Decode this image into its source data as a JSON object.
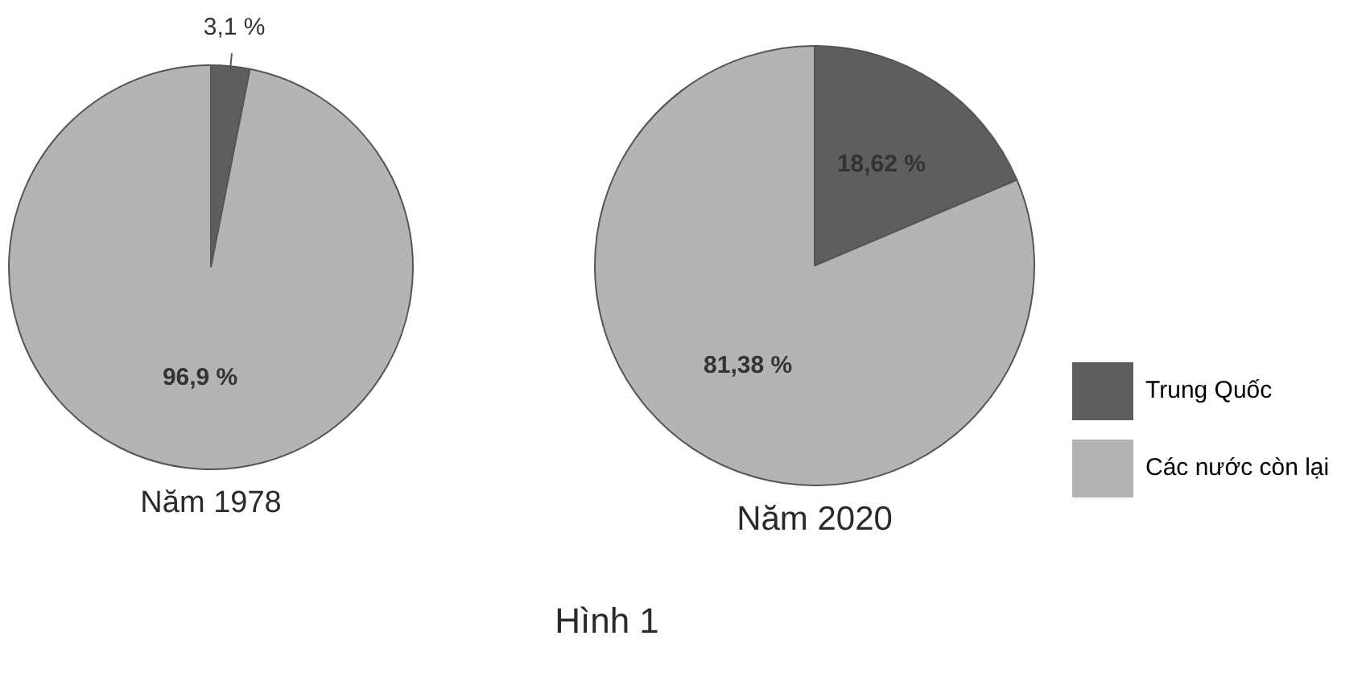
{
  "chart_data": {
    "type": "pie",
    "categories": [
      "Trung Quốc",
      "Các nước còn lại"
    ],
    "colors": [
      "#5e5e5e",
      "#b4b4b4"
    ],
    "series": [
      {
        "name": "Năm 1978",
        "values": [
          3.1,
          96.9
        ],
        "value_labels": [
          "3,1 %",
          "96,9 %"
        ]
      },
      {
        "name": "Năm 2020",
        "values": [
          18.62,
          81.38
        ],
        "value_labels": [
          "18,62 %",
          "81,38 %"
        ]
      }
    ],
    "legend": "right",
    "annotations": [
      "Hình 1"
    ]
  }
}
